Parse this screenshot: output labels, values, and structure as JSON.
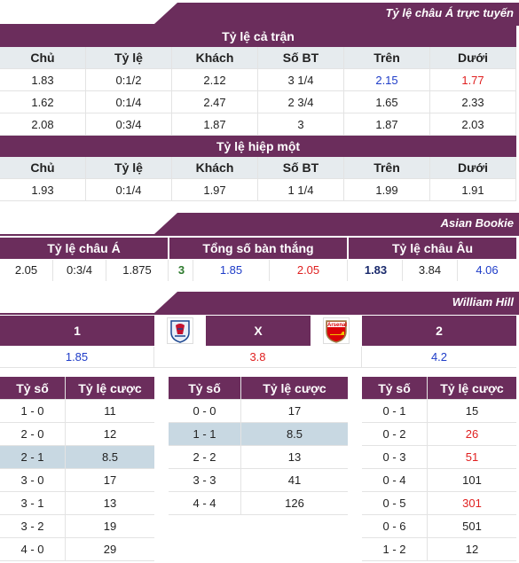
{
  "asian_live": {
    "banner": "Tỷ lệ châu Á trực tuyến",
    "full_match": {
      "title": "Tỷ lệ cả trận",
      "headers": [
        "Chủ",
        "Tỷ lệ",
        "Khách",
        "Số BT",
        "Trên",
        "Dưới"
      ],
      "rows": [
        [
          "1.83",
          "0:1/2",
          "2.12",
          "3 1/4",
          "2.15",
          "1.77"
        ],
        [
          "1.62",
          "0:1/4",
          "2.47",
          "2 3/4",
          "1.65",
          "2.33"
        ],
        [
          "2.08",
          "0:3/4",
          "1.87",
          "3",
          "1.87",
          "2.03"
        ]
      ]
    },
    "first_half": {
      "title": "Tỷ lệ hiệp một",
      "headers": [
        "Chủ",
        "Tỷ lệ",
        "Khách",
        "Số BT",
        "Trên",
        "Dưới"
      ],
      "rows": [
        [
          "1.93",
          "0:1/4",
          "1.97",
          "1 1/4",
          "1.99",
          "1.91"
        ]
      ]
    }
  },
  "asian_bookie": {
    "banner": "Asian Bookie",
    "headers": [
      "Tỷ lệ châu Á",
      "Tổng số bàn thắng",
      "Tỷ lệ châu Âu"
    ],
    "asian": [
      "2.05",
      "0:3/4",
      "1.875"
    ],
    "goals": [
      "3",
      "1.85",
      "2.05"
    ],
    "euro": [
      "1.83",
      "3.84",
      "4.06"
    ]
  },
  "william_hill": {
    "banner": "William Hill",
    "labels": [
      "1",
      "X",
      "2"
    ],
    "values": [
      "1.85",
      "3.8",
      "4.2"
    ],
    "home_logo_icon": "crystal-palace-crest-icon",
    "away_logo_icon": "arsenal-crest-icon",
    "away_logo_text": "Arsenal",
    "score_headers": [
      "Tỷ số",
      "Tỷ lệ cược"
    ],
    "home_scores": [
      [
        "1 - 0",
        "11"
      ],
      [
        "2 - 0",
        "12"
      ],
      [
        "2 - 1",
        "8.5"
      ],
      [
        "3 - 0",
        "17"
      ],
      [
        "3 - 1",
        "13"
      ],
      [
        "3 - 2",
        "19"
      ],
      [
        "4 - 0",
        "29"
      ]
    ],
    "draw_scores": [
      [
        "0 - 0",
        "17"
      ],
      [
        "1 - 1",
        "8.5"
      ],
      [
        "2 - 2",
        "13"
      ],
      [
        "3 - 3",
        "41"
      ],
      [
        "4 - 4",
        "126"
      ]
    ],
    "away_scores": [
      [
        "0 - 1",
        "15"
      ],
      [
        "0 - 2",
        "26"
      ],
      [
        "0 - 3",
        "51"
      ],
      [
        "0 - 4",
        "101"
      ],
      [
        "0 - 5",
        "301"
      ],
      [
        "0 - 6",
        "501"
      ],
      [
        "1 - 2",
        "12"
      ]
    ]
  },
  "colors": {
    "header": "#6b2d5c",
    "up": "#1e3cc8",
    "down": "#e02020",
    "highlight": "#c8d8e2"
  }
}
